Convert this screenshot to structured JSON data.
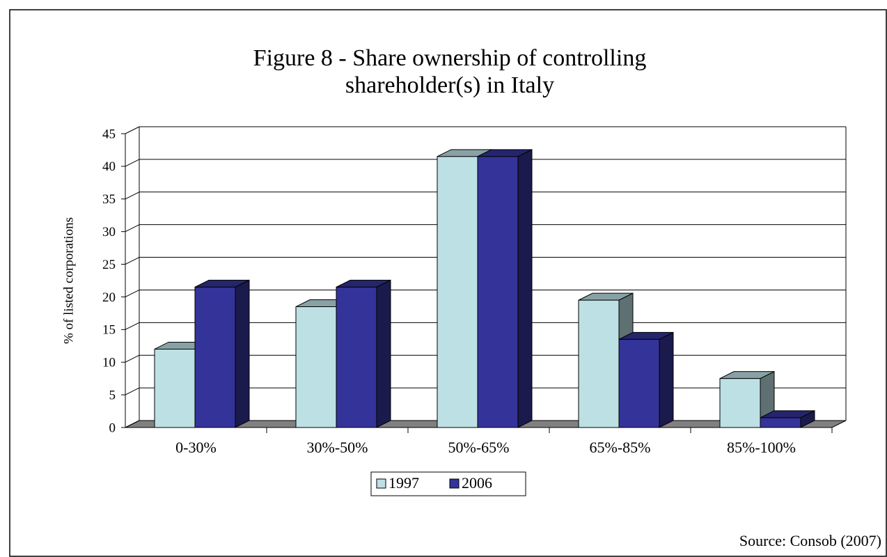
{
  "chart_data": {
    "type": "bar3d",
    "title": "Figure 8 - Share ownership of controlling",
    "title_line2": "shareholder(s) in Italy",
    "ylabel": "% of listed corporations",
    "source": "Source: Consob (2007)",
    "categories": [
      "0-30%",
      "30%-50%",
      "50%-65%",
      "65%-85%",
      "85%-100%"
    ],
    "series": [
      {
        "name": "1997",
        "color": "#bde0e4",
        "values": [
          12,
          18.5,
          41.5,
          19.5,
          7.5
        ]
      },
      {
        "name": "2006",
        "color": "#333399",
        "values": [
          21.5,
          21.5,
          41.5,
          13.5,
          1.5
        ]
      }
    ],
    "ylim": [
      0,
      45
    ],
    "yticks": [
      0,
      5,
      10,
      15,
      20,
      25,
      30,
      35,
      40,
      45
    ],
    "grid": true,
    "legend": "bottom"
  }
}
